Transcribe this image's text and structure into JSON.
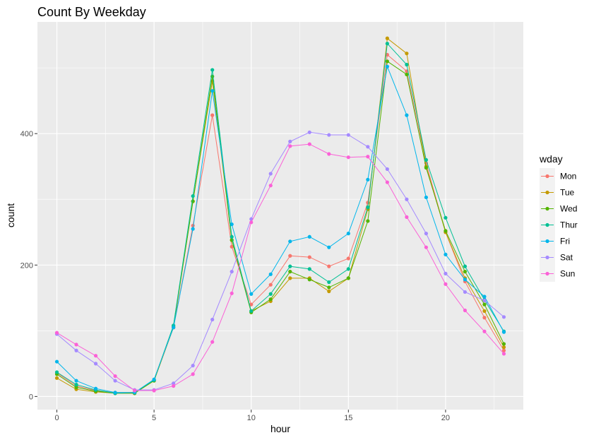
{
  "chart_data": {
    "type": "line",
    "title": "Count By Weekday",
    "xlabel": "hour",
    "ylabel": "count",
    "xlim": [
      -1,
      24
    ],
    "ylim": [
      -20,
      570
    ],
    "xticks": [
      0,
      5,
      10,
      15,
      20
    ],
    "yticks": [
      0,
      200,
      400
    ],
    "grid": true,
    "legend_title": "wday",
    "legend_position": "right",
    "x": [
      0,
      1,
      2,
      3,
      4,
      5,
      6,
      7,
      8,
      9,
      10,
      11,
      12,
      13,
      14,
      15,
      16,
      17,
      18,
      19,
      20,
      21,
      22,
      23
    ],
    "series": [
      {
        "name": "Mon",
        "color": "#F8766D",
        "values": [
          36,
          16,
          9,
          6,
          6,
          24,
          105,
          260,
          428,
          228,
          140,
          170,
          214,
          212,
          198,
          210,
          295,
          520,
          495,
          355,
          250,
          175,
          120,
          70
        ]
      },
      {
        "name": "Tue",
        "color": "#C49A00",
        "values": [
          28,
          11,
          7,
          5,
          5,
          24,
          105,
          297,
          480,
          238,
          130,
          145,
          180,
          180,
          160,
          180,
          285,
          545,
          522,
          350,
          250,
          180,
          130,
          75
        ]
      },
      {
        "name": "Wed",
        "color": "#53B400",
        "values": [
          34,
          14,
          8,
          5,
          5,
          24,
          107,
          297,
          487,
          238,
          128,
          148,
          190,
          178,
          166,
          180,
          267,
          510,
          490,
          348,
          252,
          190,
          140,
          80
        ]
      },
      {
        "name": "Thur",
        "color": "#00C094",
        "values": [
          37,
          18,
          10,
          5,
          6,
          25,
          108,
          305,
          497,
          243,
          130,
          156,
          198,
          194,
          174,
          194,
          288,
          537,
          505,
          360,
          272,
          198,
          147,
          99
        ]
      },
      {
        "name": "Fri",
        "color": "#00B6EB",
        "values": [
          53,
          24,
          12,
          6,
          6,
          26,
          105,
          255,
          465,
          262,
          156,
          186,
          236,
          243,
          227,
          248,
          330,
          502,
          428,
          303,
          216,
          178,
          152,
          98
        ]
      },
      {
        "name": "Sat",
        "color": "#A58AFF",
        "values": [
          95,
          70,
          50,
          24,
          10,
          10,
          20,
          47,
          117,
          190,
          270,
          339,
          388,
          402,
          398,
          398,
          380,
          346,
          300,
          248,
          187,
          159,
          146,
          121
        ]
      },
      {
        "name": "Sun",
        "color": "#FB61D7",
        "values": [
          97,
          79,
          62,
          31,
          9,
          9,
          16,
          34,
          83,
          157,
          265,
          321,
          381,
          384,
          369,
          364,
          365,
          326,
          273,
          227,
          171,
          131,
          99,
          65
        ]
      }
    ]
  }
}
